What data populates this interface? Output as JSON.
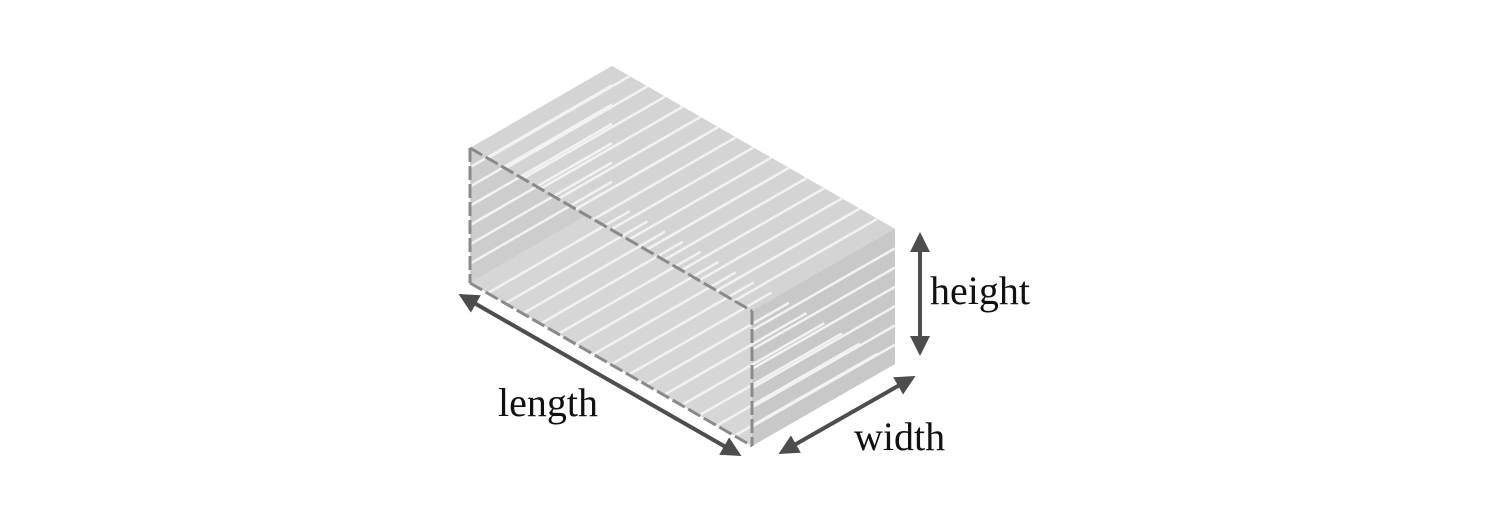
{
  "diagram": {
    "title": "Rectangular open-ended box made of slats",
    "labels": {
      "length": "length",
      "width": "width",
      "height": "height"
    },
    "slat_count_top": 16,
    "slat_count_side": 7,
    "colors": {
      "top_face": "#d4d4d4",
      "right_face": "#c8c8c8",
      "inner_back": "#c6c6c6",
      "inner_floor": "#d6d6d6",
      "inner_left": "#cdcdcd",
      "slat_line": "#f2f2f2",
      "edge": "#8a8a8a",
      "arrow": "#4d4d4d",
      "text": "#111111"
    }
  }
}
